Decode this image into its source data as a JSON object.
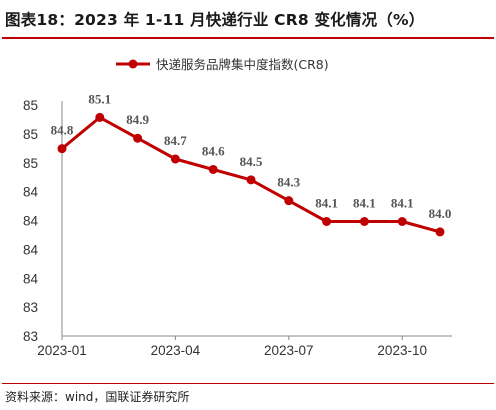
{
  "figure": {
    "title": "图表18：2023 年 1-11 月快递行业 CR8 变化情况（%）",
    "source": "资料来源：wind，国联证券研究所"
  },
  "colors": {
    "series": "#c00000",
    "accent_rule": "#c00000",
    "label": "#555555"
  },
  "chart_data": {
    "type": "line",
    "title": "图表18：2023 年 1-11 月快递行业 CR8 变化情况（%）",
    "xlabel": "",
    "ylabel": "",
    "categories": [
      "2023-01",
      "2023-02",
      "2023-03",
      "2023-04",
      "2023-05",
      "2023-06",
      "2023-07",
      "2023-08",
      "2023-09",
      "2023-10",
      "2023-11"
    ],
    "x_tick_labels": [
      "2023-01",
      "2023-04",
      "2023-07",
      "2023-10"
    ],
    "x_tick_indices": [
      0,
      3,
      6,
      9
    ],
    "y_tick_labels": [
      "83",
      "83",
      "84",
      "84",
      "84",
      "84",
      "85",
      "85",
      "85"
    ],
    "ylim": [
      83.0,
      85.2
    ],
    "grid": false,
    "legend_position": "top-center",
    "series": [
      {
        "name": "快递服务品牌集中度指数(CR8)",
        "values": [
          84.8,
          85.1,
          84.9,
          84.7,
          84.6,
          84.5,
          84.3,
          84.1,
          84.1,
          84.1,
          84.0
        ],
        "labels": [
          "84.8",
          "85.1",
          "84.9",
          "84.7",
          "84.6",
          "84.5",
          "84.3",
          "84.1",
          "84.1",
          "84.1",
          "84.0"
        ]
      }
    ]
  }
}
